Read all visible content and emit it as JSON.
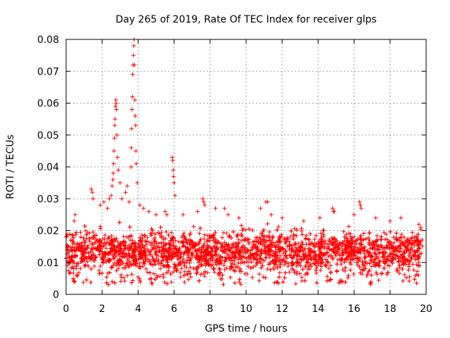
{
  "chart_data": {
    "type": "scatter",
    "title": "Day 265 of 2019, Rate Of TEC Index for receiver glps",
    "xlabel": "GPS time / hours",
    "ylabel": "ROTI / TECUs",
    "xlim": [
      0,
      20
    ],
    "ylim": [
      0,
      0.08
    ],
    "grid": true,
    "marker": "+",
    "color": "#ff0000",
    "x_ticks": [
      {
        "value": 0,
        "label": "0"
      },
      {
        "value": 2,
        "label": "2"
      },
      {
        "value": 4,
        "label": "4"
      },
      {
        "value": 6,
        "label": "6"
      },
      {
        "value": 8,
        "label": "8"
      },
      {
        "value": 10,
        "label": "10"
      },
      {
        "value": 12,
        "label": "12"
      },
      {
        "value": 14,
        "label": "14"
      },
      {
        "value": 16,
        "label": "16"
      },
      {
        "value": 18,
        "label": "18"
      },
      {
        "value": 20,
        "label": "20"
      }
    ],
    "y_ticks": [
      {
        "value": 0,
        "label": "0"
      },
      {
        "value": 0.01,
        "label": "0.01"
      },
      {
        "value": 0.02,
        "label": "0.02"
      },
      {
        "value": 0.03,
        "label": "0.03"
      },
      {
        "value": 0.04,
        "label": "0.04"
      },
      {
        "value": 0.05,
        "label": "0.05"
      },
      {
        "value": 0.06,
        "label": "0.06"
      },
      {
        "value": 0.07,
        "label": "0.07"
      },
      {
        "value": 0.08,
        "label": "0.08"
      }
    ],
    "series": [
      {
        "name": "ROTI",
        "description": "dense band of points between ~0.004 and ~0.022 across 0-19.8 h, with notable outliers listed below",
        "band": {
          "x_range": [
            0,
            19.8
          ],
          "y_low": 0.004,
          "y_high": 0.022
        },
        "points": [
          [
            0.45,
            0.023
          ],
          [
            0.5,
            0.025
          ],
          [
            1.4,
            0.033
          ],
          [
            1.45,
            0.032
          ],
          [
            1.5,
            0.03
          ],
          [
            1.9,
            0.028
          ],
          [
            2.1,
            0.029
          ],
          [
            2.3,
            0.027
          ],
          [
            2.4,
            0.03
          ],
          [
            2.5,
            0.031
          ],
          [
            2.55,
            0.034
          ],
          [
            2.6,
            0.036
          ],
          [
            2.62,
            0.038
          ],
          [
            2.64,
            0.041
          ],
          [
            2.66,
            0.045
          ],
          [
            2.68,
            0.049
          ],
          [
            2.7,
            0.053
          ],
          [
            2.72,
            0.055
          ],
          [
            2.74,
            0.059
          ],
          [
            2.76,
            0.061
          ],
          [
            2.78,
            0.06
          ],
          [
            2.8,
            0.058
          ],
          [
            2.82,
            0.05
          ],
          [
            2.85,
            0.043
          ],
          [
            2.9,
            0.039
          ],
          [
            3.0,
            0.035
          ],
          [
            3.1,
            0.03
          ],
          [
            3.3,
            0.032
          ],
          [
            3.4,
            0.034
          ],
          [
            3.5,
            0.029
          ],
          [
            3.6,
            0.04
          ],
          [
            3.62,
            0.046
          ],
          [
            3.64,
            0.052
          ],
          [
            3.66,
            0.058
          ],
          [
            3.68,
            0.062
          ],
          [
            3.7,
            0.069
          ],
          [
            3.72,
            0.072
          ],
          [
            3.74,
            0.075
          ],
          [
            3.76,
            0.078
          ],
          [
            3.78,
            0.08
          ],
          [
            3.8,
            0.072
          ],
          [
            3.82,
            0.061
          ],
          [
            3.84,
            0.056
          ],
          [
            3.86,
            0.053
          ],
          [
            3.88,
            0.045
          ],
          [
            3.9,
            0.041
          ],
          [
            3.95,
            0.035
          ],
          [
            4.1,
            0.028
          ],
          [
            4.3,
            0.027
          ],
          [
            4.6,
            0.026
          ],
          [
            5.0,
            0.025
          ],
          [
            5.5,
            0.026
          ],
          [
            5.6,
            0.025
          ],
          [
            5.9,
            0.043
          ],
          [
            5.92,
            0.042
          ],
          [
            5.95,
            0.039
          ],
          [
            5.97,
            0.037
          ],
          [
            6.0,
            0.035
          ],
          [
            6.05,
            0.031
          ],
          [
            6.5,
            0.025
          ],
          [
            7.3,
            0.026
          ],
          [
            7.6,
            0.03
          ],
          [
            7.65,
            0.029
          ],
          [
            7.7,
            0.028
          ],
          [
            8.3,
            0.027
          ],
          [
            8.8,
            0.027
          ],
          [
            9.0,
            0.025
          ],
          [
            9.6,
            0.024
          ],
          [
            10.8,
            0.027
          ],
          [
            11.1,
            0.029
          ],
          [
            11.2,
            0.029
          ],
          [
            11.4,
            0.025
          ],
          [
            12.0,
            0.024
          ],
          [
            13.2,
            0.023
          ],
          [
            14.1,
            0.024
          ],
          [
            14.8,
            0.027
          ],
          [
            14.85,
            0.026
          ],
          [
            14.9,
            0.026
          ],
          [
            16.0,
            0.025
          ],
          [
            16.3,
            0.029
          ],
          [
            16.35,
            0.028
          ],
          [
            16.4,
            0.027
          ],
          [
            17.2,
            0.024
          ],
          [
            18.0,
            0.023
          ],
          [
            18.6,
            0.024
          ],
          [
            19.6,
            0.022
          ],
          [
            19.7,
            0.021
          ]
        ]
      }
    ]
  }
}
